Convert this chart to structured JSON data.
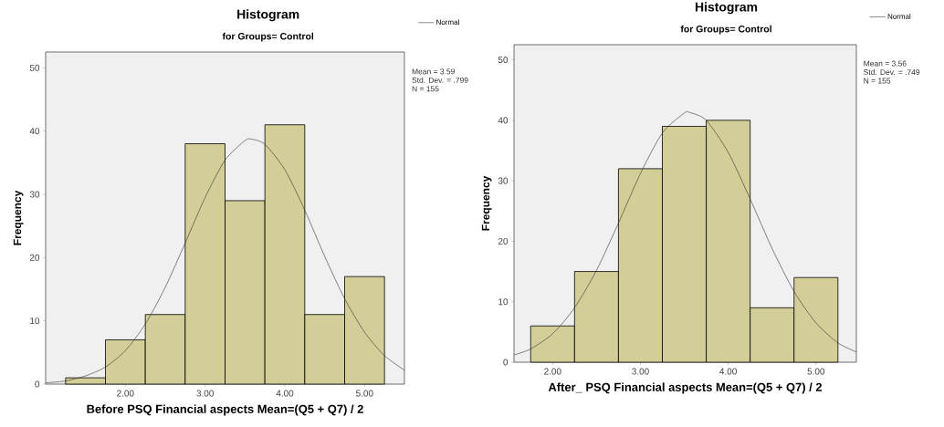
{
  "chart_data": [
    {
      "type": "histogram",
      "title": "Histogram",
      "subtitle": "for Groups= Control",
      "xlabel": "Before PSQ Financial aspects Mean=(Q5 + Q7) / 2",
      "ylabel": "Frequency",
      "series": [
        {
          "color": "#d3ce97",
          "bins": [
            1.25,
            1.75,
            2.25,
            2.75,
            3.25,
            3.75,
            4.25,
            4.75,
            5.25
          ],
          "values": [
            1,
            7,
            11,
            38,
            29,
            41,
            11,
            17
          ]
        },
        {
          "type": "line",
          "name": "Normal",
          "color": "#333333",
          "x": [
            1.0,
            1.25,
            1.5,
            1.75,
            2.0,
            2.25,
            2.5,
            2.75,
            3.0,
            3.25,
            3.5,
            3.59,
            3.75,
            4.0,
            4.25,
            4.5,
            4.75,
            5.0,
            5.25,
            5.5
          ],
          "values": [
            0.2,
            0.5,
            1.3,
            2.7,
            5.3,
            9.5,
            15.3,
            22.3,
            29.5,
            35.4,
            38.5,
            38.7,
            37.9,
            33.9,
            27.5,
            20.2,
            13.5,
            8.2,
            4.5,
            2.2
          ]
        }
      ],
      "xlim": [
        1.0,
        5.5
      ],
      "ylim": [
        0,
        52.5
      ],
      "xticks": [
        {
          "value": 2,
          "label": "2.00"
        },
        {
          "value": 3,
          "label": "3.00"
        },
        {
          "value": 4,
          "label": "4.00"
        },
        {
          "value": 5,
          "label": "5.00"
        }
      ],
      "yticks": [
        0,
        10,
        20,
        30,
        40,
        50
      ],
      "legend": "top right",
      "annotations": [
        "Mean = 3.59",
        "Std. Dev. = .799",
        "N = 155"
      ]
    },
    {
      "type": "histogram",
      "title": "Histogram",
      "subtitle": "for Groups= Control",
      "xlabel": "After_ PSQ Financial aspects Mean=(Q5 + Q7) / 2",
      "ylabel": "Frequency",
      "series": [
        {
          "color": "#d3ce97",
          "bins": [
            1.75,
            2.25,
            2.75,
            3.25,
            3.75,
            4.25,
            4.75,
            5.25
          ],
          "values": [
            6,
            15,
            32,
            39,
            40,
            9,
            14
          ]
        },
        {
          "type": "line",
          "name": "Normal",
          "color": "#333333",
          "x": [
            1.56,
            1.75,
            2.0,
            2.25,
            2.5,
            2.75,
            3.0,
            3.25,
            3.5,
            3.56,
            3.75,
            4.0,
            4.25,
            4.5,
            4.75,
            5.0,
            5.25,
            5.46
          ],
          "values": [
            1.2,
            2.2,
            4.7,
            9.0,
            15.2,
            23.0,
            31.2,
            37.9,
            41.2,
            41.3,
            40.0,
            34.7,
            27.0,
            18.8,
            11.7,
            6.5,
            3.2,
            1.7
          ]
        }
      ],
      "xlim": [
        1.56,
        5.46
      ],
      "ylim": [
        0,
        52.5
      ],
      "xticks": [
        {
          "value": 2,
          "label": "2.00"
        },
        {
          "value": 3,
          "label": "3.00"
        },
        {
          "value": 4,
          "label": "4.00"
        },
        {
          "value": 5,
          "label": "5.00"
        }
      ],
      "yticks": [
        0,
        10,
        20,
        30,
        40,
        50
      ],
      "legend": "top right",
      "annotations": [
        "Mean = 3.56",
        "Std. Dev. = .749",
        "N = 155"
      ]
    }
  ]
}
